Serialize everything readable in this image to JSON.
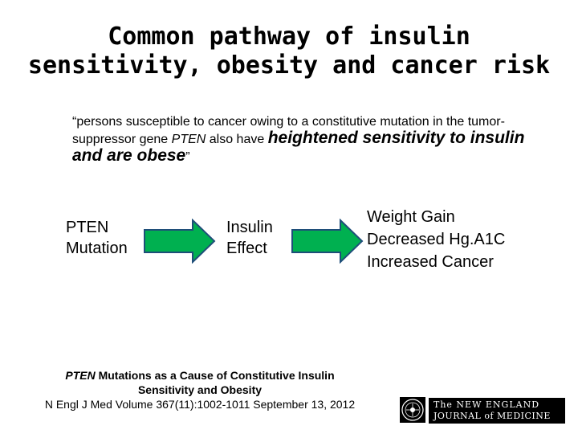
{
  "slide": {
    "title_line1": "Common pathway of insulin",
    "title_line2": "sensitivity, obesity and cancer risk"
  },
  "quote": {
    "part1": "“persons susceptible to cancer owing to a constitutive mutation in the tumor-suppressor gene ",
    "gene": "PTEN",
    "part2": " also have ",
    "emphasis": "heightened sensitivity to insulin and are obese",
    "close": "”"
  },
  "diagram": {
    "step1_line1": "PTEN",
    "step1_line2": "Mutation",
    "step2_line1": "Insulin",
    "step2_line2": "Effect",
    "outcome1": "Weight Gain",
    "outcome2": "Decreased Hg.A1C",
    "outcome3": "Increased Cancer",
    "arrow_fill": "#00b050",
    "arrow_stroke": "#1f4e79"
  },
  "citation": {
    "gene": "PTEN",
    "title_rest": " Mutations as a Cause of Constitutive Insulin",
    "title_line2": "Sensitivity and Obesity",
    "reference": "N Engl J Med Volume 367(11):1002-1011 September 13, 2012"
  },
  "logo": {
    "line1": "The NEW ENGLAND",
    "line2": "JOURNAL of MEDICINE"
  }
}
